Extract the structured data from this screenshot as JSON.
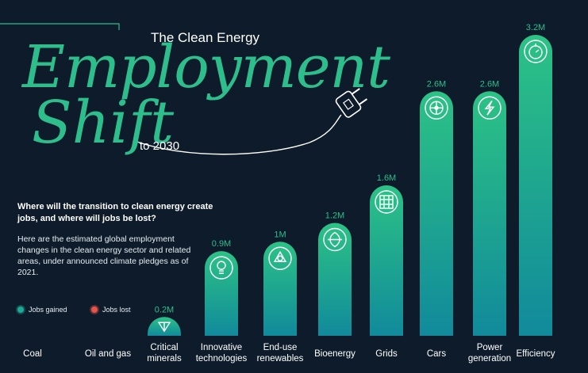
{
  "header": {
    "pre_title": "The Clean Energy",
    "title_line1": "Employment",
    "title_line2": "Shift",
    "post_title": "to 2030"
  },
  "intro": {
    "question": "Where will the transition to clean energy create jobs, and where will jobs be lost?",
    "description": "Here are the estimated global employment changes in the clean energy sector and related areas, under announced climate pledges as of 2021."
  },
  "legend": {
    "gained": "Jobs gained",
    "lost": "Jobs lost",
    "gained_color": "#1fa896",
    "lost_color": "#e8544a"
  },
  "chart_data": {
    "type": "bar",
    "categories": [
      "Coal",
      "Oil and gas",
      "Critical minerals",
      "Innovative technologies",
      "End-use renewables",
      "Bioenergy",
      "Grids",
      "Cars",
      "Power generation",
      "Efficiency"
    ],
    "category_lines": [
      [
        "Coal"
      ],
      [
        "Oil and gas"
      ],
      [
        "Critical",
        "minerals"
      ],
      [
        "Innovative",
        "technologies"
      ],
      [
        "End-use",
        "renewables"
      ],
      [
        "Bioenergy"
      ],
      [
        "Grids"
      ],
      [
        "Cars"
      ],
      [
        "Power",
        "generation"
      ],
      [
        "Efficiency"
      ]
    ],
    "values": [
      null,
      null,
      0.2,
      0.9,
      1.0,
      1.2,
      1.6,
      2.6,
      2.6,
      3.2
    ],
    "data_labels": [
      "",
      "",
      "0.2M",
      "0.9M",
      "1M",
      "1.2M",
      "1.6M",
      "2.6M",
      "2.6M",
      "3.2M"
    ],
    "icons": [
      "",
      "",
      "pickaxe-icon",
      "lightbulb-icon",
      "recycle-icon",
      "leaf-circle-icon",
      "grid-panel-icon",
      "wheel-icon",
      "lightning-icon",
      "clock-icon"
    ],
    "unit": "M",
    "ylim": [
      0,
      3.2
    ],
    "grid": false
  }
}
